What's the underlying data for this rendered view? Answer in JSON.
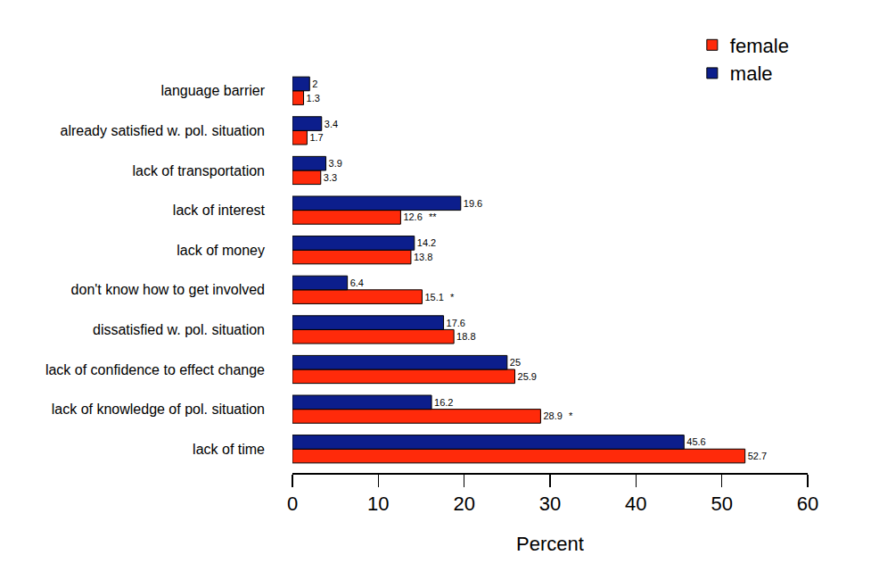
{
  "chart_data": {
    "type": "bar",
    "orientation": "horizontal",
    "x_label": "Percent",
    "categories": [
      "lack of time",
      "lack of knowledge of pol. situation",
      "lack of confidence to effect change",
      "dissatisfied w. pol. situation",
      "don't know how to get involved",
      "lack of money",
      "lack of interest",
      "lack of transportation",
      "already satisfied w. pol. situation",
      "language barrier"
    ],
    "series": [
      {
        "name": "female",
        "color": "#ff2a0a",
        "values": [
          52.7,
          28.9,
          25.9,
          18.8,
          15.1,
          13.8,
          12.6,
          3.3,
          1.7,
          1.3
        ]
      },
      {
        "name": "male",
        "color": "#0c1e8c",
        "values": [
          45.6,
          16.2,
          25,
          17.6,
          6.4,
          14.2,
          19.6,
          3.9,
          3.4,
          2
        ]
      }
    ],
    "xlim": [
      0,
      60
    ],
    "xticks": [
      0,
      10,
      20,
      30,
      40,
      50,
      60
    ],
    "grid": false,
    "legend": "top right",
    "data_labels": true,
    "annotations": [
      {
        "text": "**",
        "category": "lack of interest",
        "series": "female"
      },
      {
        "text": "*",
        "category": "don't know how to get involved",
        "series": "female"
      },
      {
        "text": "*",
        "category": "lack of knowledge of pol. situation",
        "series": "female"
      }
    ]
  }
}
